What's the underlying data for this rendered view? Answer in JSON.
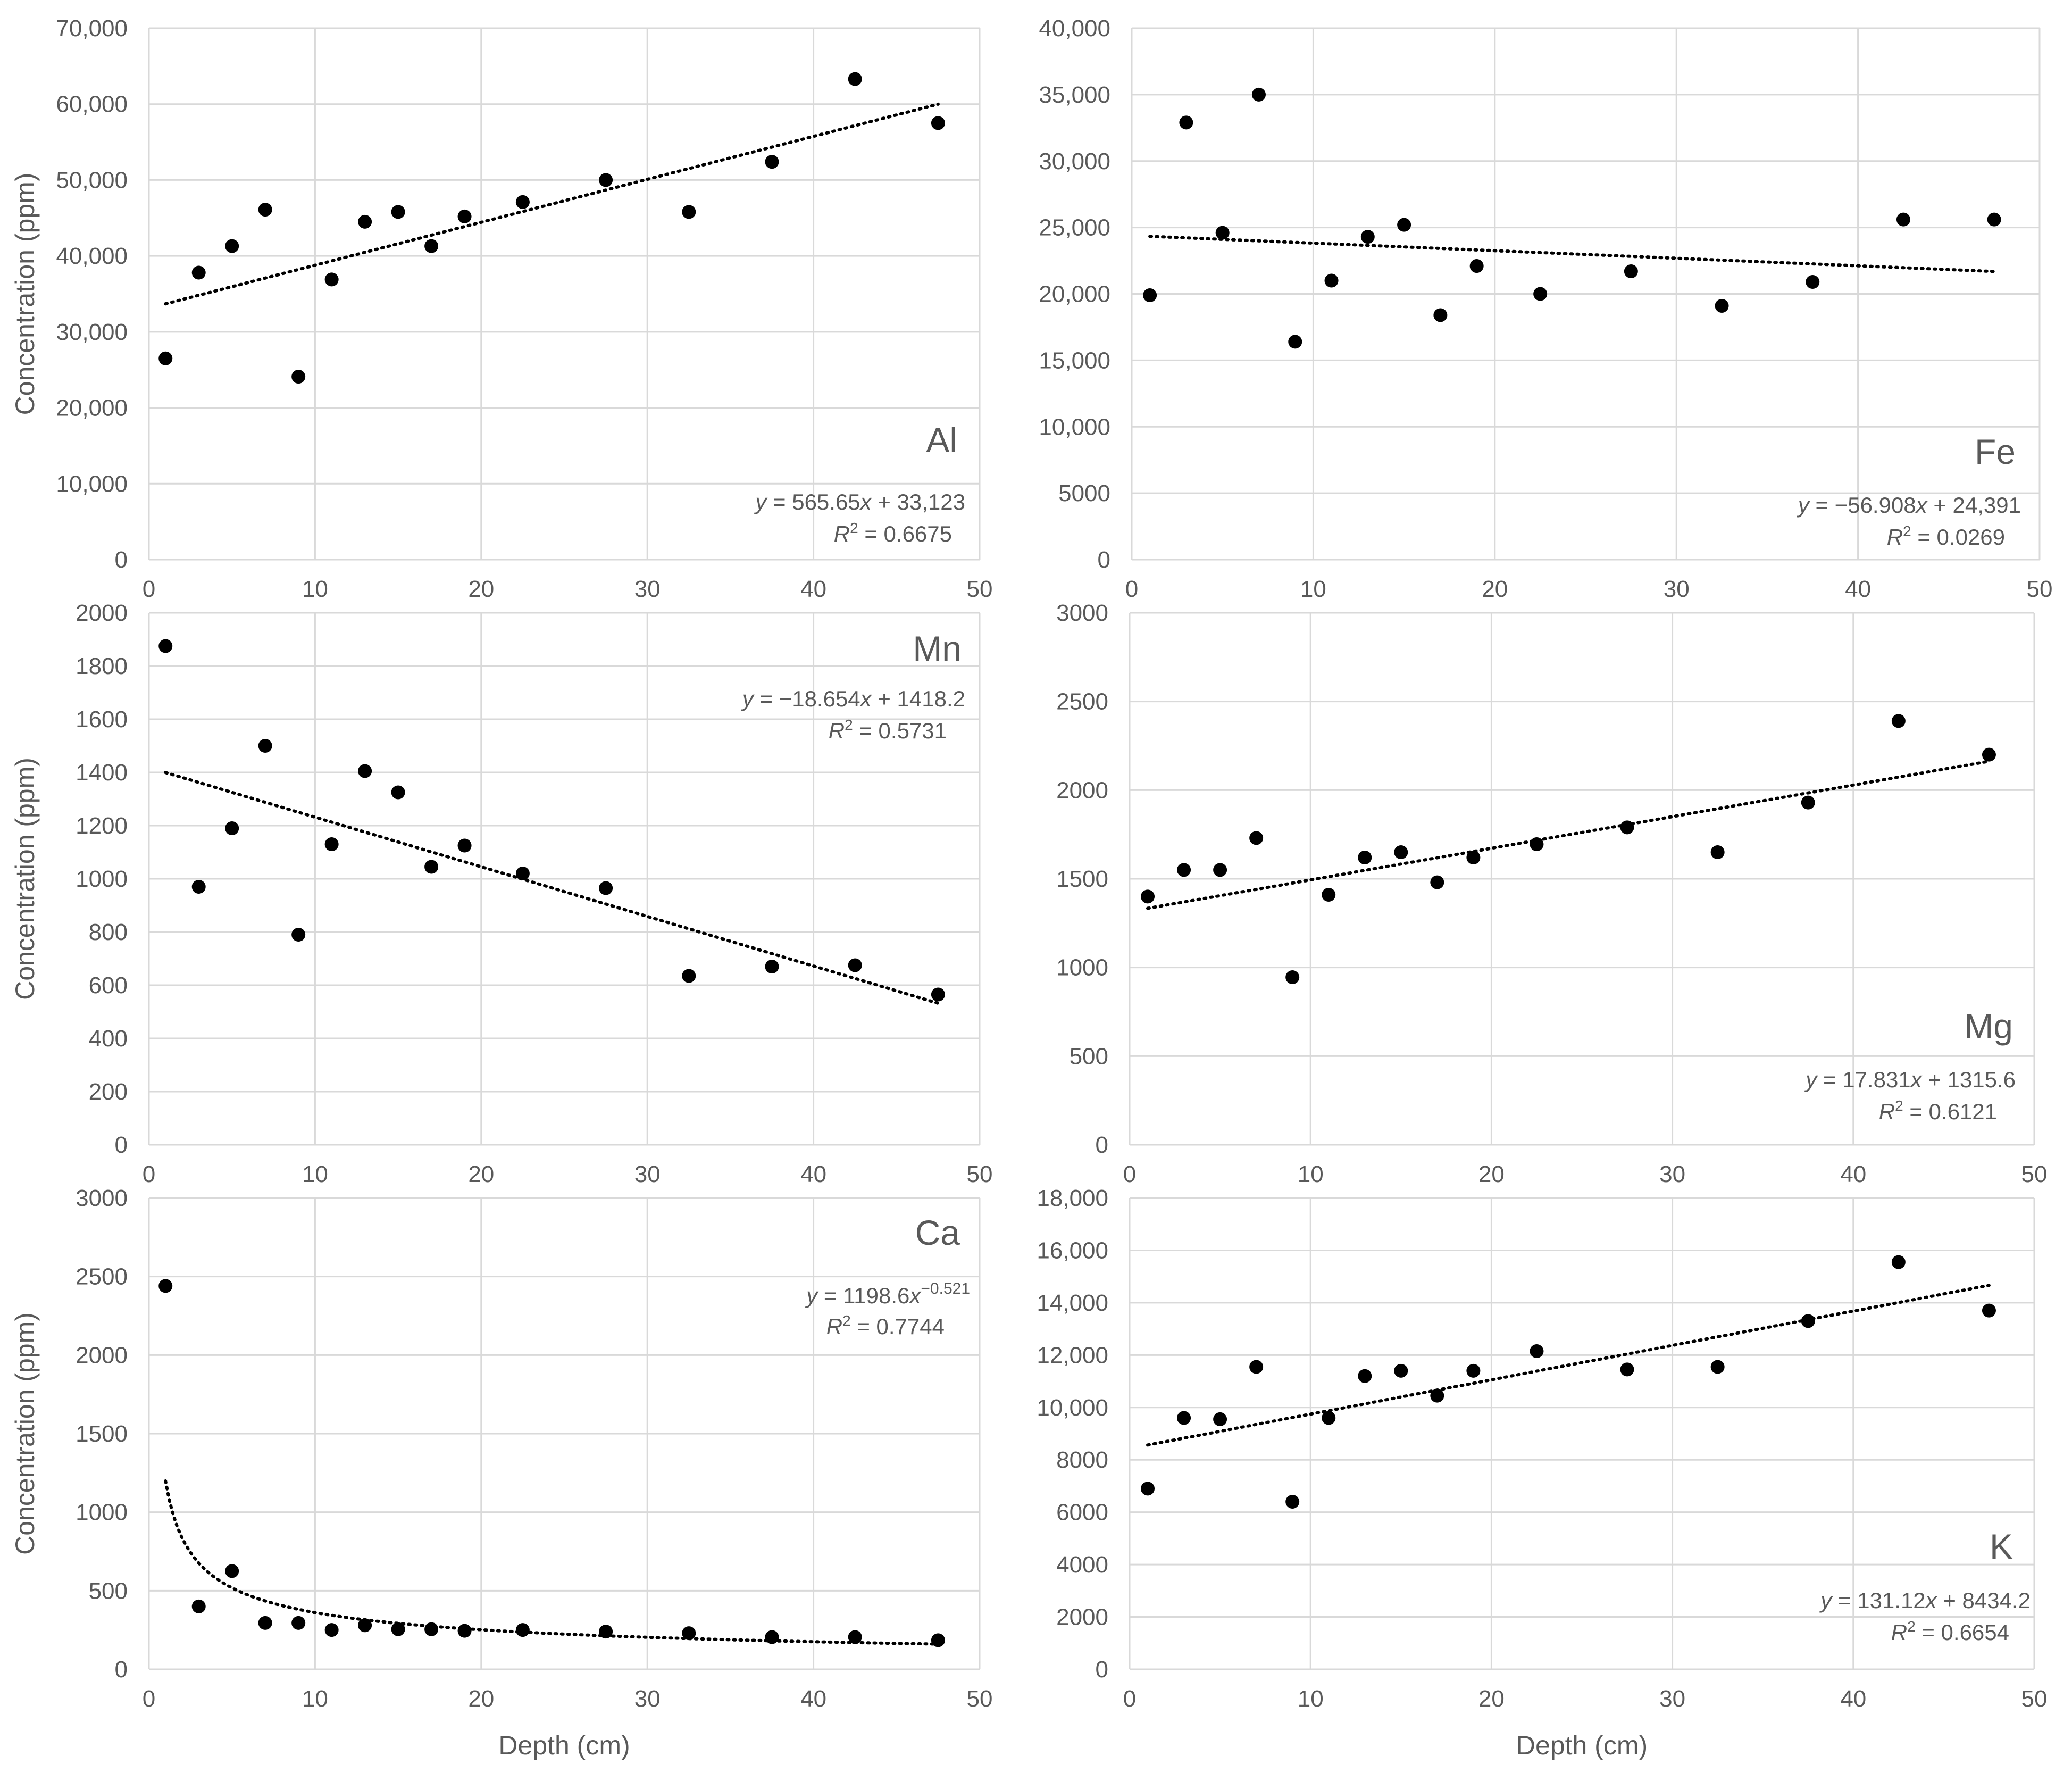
{
  "figure": {
    "x_axis_title": "Depth (cm)",
    "y_axis_title": "Concentration (ppm)"
  },
  "chart_data": [
    {
      "type": "scatter",
      "title": "Al",
      "xlabel": "",
      "ylabel": "Concentration (ppm)",
      "xlim": [
        0,
        50
      ],
      "ylim": [
        0,
        70000
      ],
      "x_ticks": [
        "0",
        "10",
        "20",
        "30",
        "40",
        "50"
      ],
      "y_ticks": [
        "0",
        "10,000",
        "20,000",
        "30,000",
        "40,000",
        "50,000",
        "60,000",
        "70,000"
      ],
      "legend_position": "bottom-right",
      "series": [
        {
          "name": "Al",
          "points": [
            [
              1,
              26500
            ],
            [
              3,
              37800
            ],
            [
              5,
              41300
            ],
            [
              7,
              46100
            ],
            [
              9,
              24100
            ],
            [
              11,
              36900
            ],
            [
              13,
              44500
            ],
            [
              15,
              45800
            ],
            [
              17,
              41300
            ],
            [
              19,
              45200
            ],
            [
              22.5,
              47100
            ],
            [
              27.5,
              50000
            ],
            [
              32.5,
              45800
            ],
            [
              37.5,
              52400
            ],
            [
              42.5,
              63300
            ],
            [
              47.5,
              57500
            ]
          ]
        }
      ],
      "trendline": {
        "type": "linear",
        "slope": 565.65,
        "intercept": 33123,
        "x_range": [
          1,
          47.5
        ]
      },
      "equation": {
        "eq_prefix": "y = 565.65",
        "eq_var": "x",
        "eq_suffix": " + 33,123",
        "r2_value": " = 0.6675"
      }
    },
    {
      "type": "scatter",
      "title": "Fe",
      "xlabel": "",
      "ylabel": "",
      "xlim": [
        0,
        50
      ],
      "ylim": [
        0,
        40000
      ],
      "x_ticks": [
        "0",
        "10",
        "20",
        "30",
        "40",
        "50"
      ],
      "y_ticks": [
        "0",
        "5000",
        "10,000",
        "15,000",
        "20,000",
        "25,000",
        "30,000",
        "35,000",
        "40,000"
      ],
      "legend_position": "bottom-right",
      "series": [
        {
          "name": "Fe",
          "points": [
            [
              1,
              19900
            ],
            [
              3,
              32900
            ],
            [
              5,
              24600
            ],
            [
              7,
              35000
            ],
            [
              9,
              16400
            ],
            [
              11,
              21000
            ],
            [
              13,
              24300
            ],
            [
              15,
              25200
            ],
            [
              17,
              18400
            ],
            [
              19,
              22100
            ],
            [
              22.5,
              20000
            ],
            [
              27.5,
              21700
            ],
            [
              32.5,
              19100
            ],
            [
              37.5,
              20900
            ],
            [
              42.5,
              25600
            ],
            [
              47.5,
              25600
            ]
          ]
        }
      ],
      "trendline": {
        "type": "linear",
        "slope": -56.908,
        "intercept": 24391,
        "x_range": [
          1,
          47.5
        ]
      },
      "equation": {
        "eq_prefix": "y = −56.908",
        "eq_var": "x",
        "eq_suffix": " + 24,391",
        "r2_value": " = 0.0269"
      }
    },
    {
      "type": "scatter",
      "title": "Mn",
      "xlabel": "",
      "ylabel": "Concentration (ppm)",
      "xlim": [
        0,
        50
      ],
      "ylim": [
        0,
        2000
      ],
      "x_ticks": [
        "0",
        "10",
        "20",
        "30",
        "40",
        "50"
      ],
      "y_ticks": [
        "0",
        "200",
        "400",
        "600",
        "800",
        "1000",
        "1200",
        "1400",
        "1600",
        "1800",
        "2000"
      ],
      "legend_position": "top-right",
      "series": [
        {
          "name": "Mn",
          "points": [
            [
              1,
              1875
            ],
            [
              3,
              970
            ],
            [
              5,
              1190
            ],
            [
              7,
              1500
            ],
            [
              9,
              790
            ],
            [
              11,
              1130
            ],
            [
              13,
              1405
            ],
            [
              15,
              1325
            ],
            [
              17,
              1045
            ],
            [
              19,
              1125
            ],
            [
              22.5,
              1020
            ],
            [
              27.5,
              965
            ],
            [
              32.5,
              635
            ],
            [
              37.5,
              670
            ],
            [
              42.5,
              675
            ],
            [
              47.5,
              565
            ]
          ]
        }
      ],
      "trendline": {
        "type": "linear",
        "slope": -18.654,
        "intercept": 1418.2,
        "x_range": [
          1,
          47.5
        ]
      },
      "equation": {
        "eq_prefix": "y = −18.654",
        "eq_var": "x",
        "eq_suffix": " + 1418.2",
        "r2_value": " = 0.5731"
      }
    },
    {
      "type": "scatter",
      "title": "Mg",
      "xlabel": "",
      "ylabel": "",
      "xlim": [
        0,
        50
      ],
      "ylim": [
        0,
        3000
      ],
      "x_ticks": [
        "0",
        "10",
        "20",
        "30",
        "40",
        "50"
      ],
      "y_ticks": [
        "0",
        "500",
        "1000",
        "1500",
        "2000",
        "2500",
        "3000"
      ],
      "legend_position": "bottom-right",
      "series": [
        {
          "name": "Mg",
          "points": [
            [
              1,
              1400
            ],
            [
              3,
              1550
            ],
            [
              5,
              1550
            ],
            [
              7,
              1730
            ],
            [
              9,
              945
            ],
            [
              11,
              1410
            ],
            [
              13,
              1620
            ],
            [
              15,
              1650
            ],
            [
              17,
              1480
            ],
            [
              19,
              1620
            ],
            [
              22.5,
              1695
            ],
            [
              27.5,
              1790
            ],
            [
              32.5,
              1650
            ],
            [
              37.5,
              1930
            ],
            [
              42.5,
              2390
            ],
            [
              47.5,
              2200
            ]
          ]
        }
      ],
      "trendline": {
        "type": "linear",
        "slope": 17.831,
        "intercept": 1315.6,
        "x_range": [
          1,
          47.5
        ]
      },
      "equation": {
        "eq_prefix": "y = 17.831",
        "eq_var": "x",
        "eq_suffix": " + 1315.6",
        "r2_value": " = 0.6121"
      }
    },
    {
      "type": "scatter",
      "title": "Ca",
      "xlabel": "Depth (cm)",
      "ylabel": "Concentration (ppm)",
      "xlim": [
        0,
        50
      ],
      "ylim": [
        0,
        3000
      ],
      "x_ticks": [
        "0",
        "10",
        "20",
        "30",
        "40",
        "50"
      ],
      "y_ticks": [
        "0",
        "500",
        "1000",
        "1500",
        "2000",
        "2500",
        "3000"
      ],
      "legend_position": "top-right",
      "series": [
        {
          "name": "Ca",
          "points": [
            [
              1,
              2440
            ],
            [
              3,
              400
            ],
            [
              5,
              625
            ],
            [
              7,
              295
            ],
            [
              9,
              295
            ],
            [
              11,
              250
            ],
            [
              13,
              280
            ],
            [
              15,
              255
            ],
            [
              17,
              255
            ],
            [
              19,
              245
            ],
            [
              22.5,
              250
            ],
            [
              27.5,
              240
            ],
            [
              32.5,
              230
            ],
            [
              37.5,
              205
            ],
            [
              42.5,
              205
            ],
            [
              47.5,
              185
            ]
          ]
        }
      ],
      "trendline": {
        "type": "power",
        "coef": 1198.6,
        "exponent": -0.521,
        "x_range": [
          1,
          47.5
        ]
      },
      "equation": {
        "eq_prefix": "y = 1198.6",
        "eq_var": "x",
        "eq_exp": "−0.521",
        "eq_suffix": "",
        "r2_value": " = 0.7744"
      }
    },
    {
      "type": "scatter",
      "title": "K",
      "xlabel": "Depth (cm)",
      "ylabel": "",
      "xlim": [
        0,
        50
      ],
      "ylim": [
        0,
        18000
      ],
      "x_ticks": [
        "0",
        "10",
        "20",
        "30",
        "40",
        "50"
      ],
      "y_ticks": [
        "0",
        "2000",
        "4000",
        "6000",
        "8000",
        "10,000",
        "12,000",
        "14,000",
        "16,000",
        "18,000"
      ],
      "legend_position": "bottom-right",
      "series": [
        {
          "name": "K",
          "points": [
            [
              1,
              6900
            ],
            [
              3,
              9600
            ],
            [
              5,
              9550
            ],
            [
              7,
              11550
            ],
            [
              9,
              6400
            ],
            [
              11,
              9600
            ],
            [
              13,
              11200
            ],
            [
              15,
              11400
            ],
            [
              17,
              10450
            ],
            [
              19,
              11400
            ],
            [
              22.5,
              12150
            ],
            [
              27.5,
              11450
            ],
            [
              32.5,
              11550
            ],
            [
              37.5,
              13300
            ],
            [
              42.5,
              15550
            ],
            [
              47.5,
              13700
            ]
          ]
        }
      ],
      "trendline": {
        "type": "linear",
        "slope": 131.12,
        "intercept": 8434.2,
        "x_range": [
          1,
          47.5
        ]
      },
      "equation": {
        "eq_prefix": "y = 131.12",
        "eq_var": "x",
        "eq_suffix": " + 8434.2",
        "r2_value": " = 0.6654"
      }
    }
  ]
}
